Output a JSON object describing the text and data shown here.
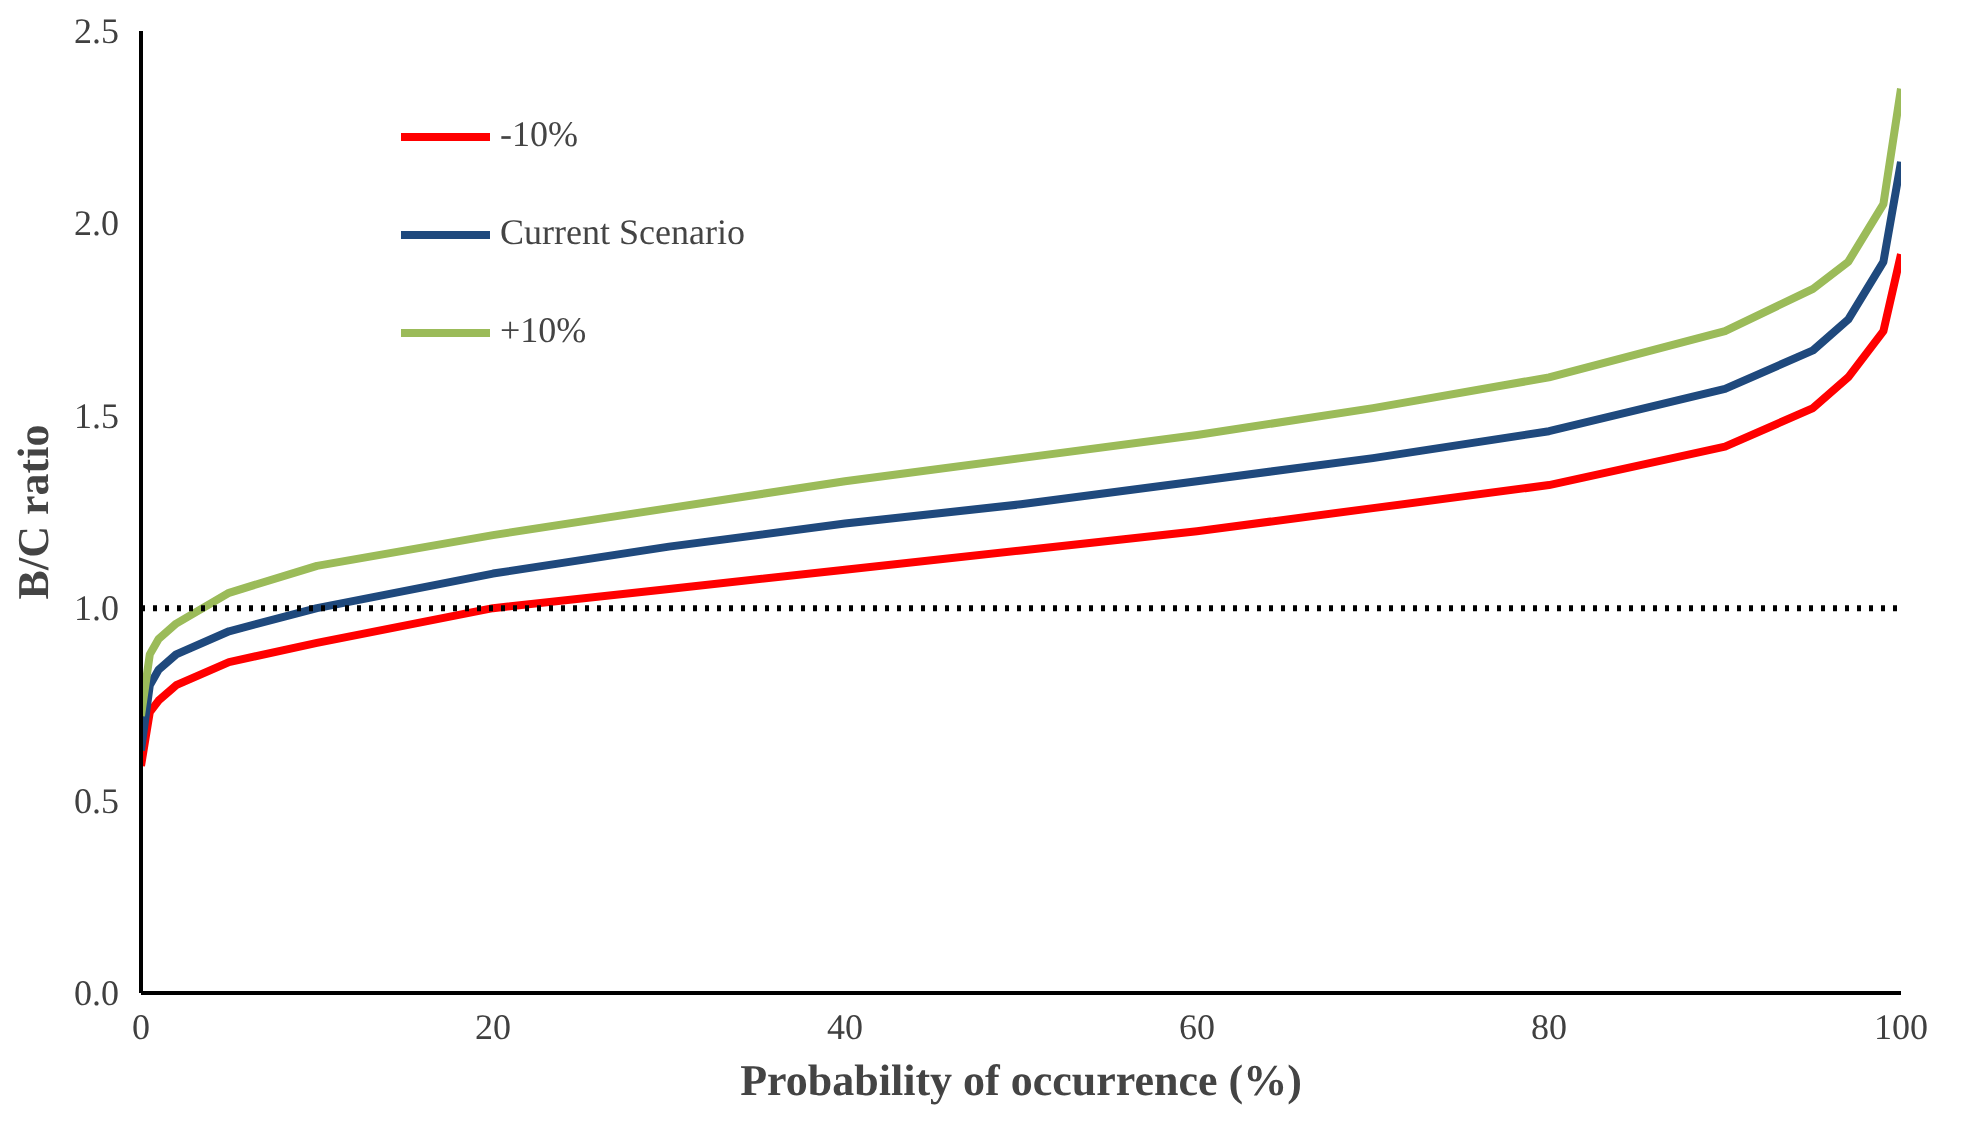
{
  "chart_data": {
    "type": "line",
    "xlabel": "Probability of occurrence (%)",
    "ylabel": "B/C ratio",
    "xlim": [
      0,
      100
    ],
    "ylim": [
      0,
      2.5
    ],
    "xticks": [
      0,
      20,
      40,
      60,
      80,
      100
    ],
    "yticks": [
      {
        "value": 0,
        "label": "0.0"
      },
      {
        "value": 0.5,
        "label": "0.5"
      },
      {
        "value": 1,
        "label": "1.0"
      },
      {
        "value": 1.5,
        "label": "1.5"
      },
      {
        "value": 2,
        "label": "2.0"
      },
      {
        "value": 2.5,
        "label": "2.5"
      }
    ],
    "x": [
      0,
      0.5,
      1,
      2,
      5,
      10,
      20,
      30,
      40,
      50,
      60,
      70,
      80,
      90,
      95,
      97,
      99,
      100
    ],
    "series": [
      {
        "name": "-10%",
        "color": "#ff0000",
        "values": [
          0.59,
          0.73,
          0.76,
          0.8,
          0.86,
          0.91,
          1.0,
          1.05,
          1.1,
          1.15,
          1.2,
          1.26,
          1.32,
          1.42,
          1.52,
          1.6,
          1.72,
          1.92
        ]
      },
      {
        "name": "Current Scenario",
        "color": "#1f497d",
        "values": [
          0.63,
          0.8,
          0.84,
          0.88,
          0.94,
          1.0,
          1.09,
          1.16,
          1.22,
          1.27,
          1.33,
          1.39,
          1.46,
          1.57,
          1.67,
          1.75,
          1.9,
          2.16
        ]
      },
      {
        "name": "+10%",
        "color": "#9bbb59",
        "values": [
          0.72,
          0.88,
          0.92,
          0.96,
          1.04,
          1.11,
          1.19,
          1.26,
          1.33,
          1.39,
          1.45,
          1.52,
          1.6,
          1.72,
          1.83,
          1.9,
          2.05,
          2.35
        ]
      }
    ],
    "ref_lines": [
      {
        "axis": "y",
        "value": 1.0,
        "label": null,
        "color": "#000000",
        "line_style": "dotted"
      }
    ],
    "legend": "top left",
    "grid": false,
    "line_style": "solid",
    "marker": "none"
  }
}
